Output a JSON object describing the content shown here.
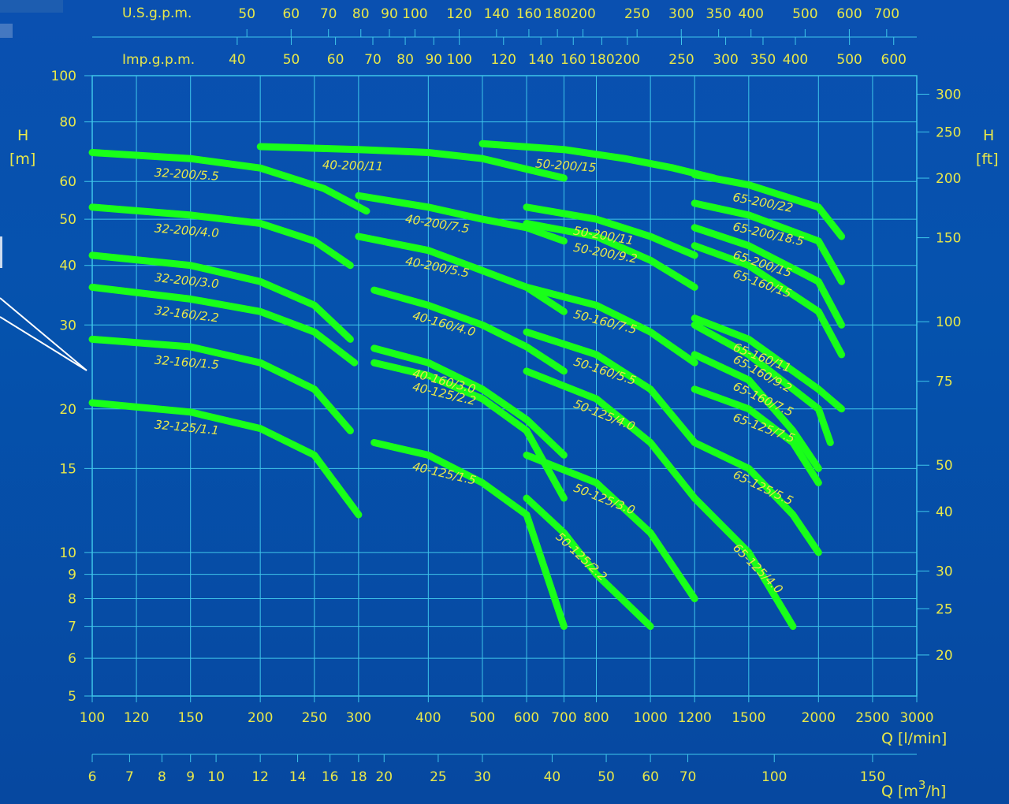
{
  "chart_data": {
    "type": "line",
    "xscale": "log",
    "yscale": "log",
    "x_ticks_lmin": [
      100,
      120,
      150,
      200,
      250,
      300,
      400,
      500,
      600,
      700,
      800,
      1000,
      1200,
      1500,
      2000,
      2500,
      3000
    ],
    "x_ticks_m3h": [
      6,
      7,
      8,
      9,
      10,
      12,
      14,
      16,
      18,
      20,
      25,
      30,
      40,
      50,
      60,
      70,
      100,
      150
    ],
    "x_ticks_usgpm": [
      50,
      60,
      70,
      80,
      90,
      100,
      120,
      140,
      160,
      180,
      200,
      250,
      300,
      350,
      400,
      500,
      600,
      700
    ],
    "x_ticks_impgpm": [
      40,
      50,
      60,
      70,
      80,
      90,
      100,
      120,
      140,
      160,
      180,
      200,
      250,
      300,
      350,
      400,
      500,
      600
    ],
    "y_ticks_m": [
      100,
      80,
      60,
      50,
      40,
      30,
      20,
      15,
      10,
      9,
      8,
      7,
      6,
      5
    ],
    "y_ticks_ft": [
      300,
      250,
      200,
      150,
      100,
      75,
      50,
      40,
      30,
      25,
      20
    ],
    "labels": {
      "usgpm": "U.S.g.p.m.",
      "impgpm": "Imp.g.p.m.",
      "h_left": "H",
      "h_left_unit": "[m]",
      "h_right": "H",
      "h_right_unit": "[ft]",
      "q_lmin": "Q [l/min]",
      "q_m3h_prefix": "Q [m",
      "q_m3h_sup": "3",
      "q_m3h_suffix": "/h]"
    },
    "series": [
      {
        "name": "32-200/5.5",
        "x": [
          100,
          150,
          200,
          260,
          310
        ],
        "y": [
          69,
          67,
          64,
          58,
          52
        ]
      },
      {
        "name": "32-200/4.0",
        "x": [
          100,
          150,
          200,
          250,
          290
        ],
        "y": [
          53,
          51,
          49,
          45,
          40
        ]
      },
      {
        "name": "32-200/3.0",
        "x": [
          100,
          150,
          200,
          250,
          290
        ],
        "y": [
          42,
          40,
          37,
          33,
          28
        ]
      },
      {
        "name": "32-160/2.2",
        "x": [
          100,
          150,
          200,
          250,
          295
        ],
        "y": [
          36,
          34,
          32,
          29,
          25
        ]
      },
      {
        "name": "32-160/1.5",
        "x": [
          100,
          150,
          200,
          250,
          290
        ],
        "y": [
          28,
          27,
          25,
          22,
          18
        ]
      },
      {
        "name": "32-125/1.1",
        "x": [
          100,
          150,
          200,
          250,
          300
        ],
        "y": [
          20.6,
          19.7,
          18.2,
          16,
          12
        ]
      },
      {
        "name": "40-200/11",
        "x": [
          200,
          300,
          400,
          500,
          700
        ],
        "y": [
          71,
          70,
          69,
          67,
          61
        ]
      },
      {
        "name": "40-200/7.5",
        "x": [
          300,
          400,
          500,
          600,
          700
        ],
        "y": [
          56,
          53,
          50,
          48,
          45
        ]
      },
      {
        "name": "40-200/5.5",
        "x": [
          300,
          400,
          500,
          600,
          700
        ],
        "y": [
          46,
          43,
          39,
          36,
          32
        ]
      },
      {
        "name": "40-160/4.0",
        "x": [
          320,
          400,
          500,
          600,
          700
        ],
        "y": [
          35.5,
          33,
          30,
          27,
          24
        ]
      },
      {
        "name": "40-160/3.0",
        "x": [
          320,
          400,
          500,
          600,
          700
        ],
        "y": [
          26.8,
          25,
          22,
          19,
          16
        ]
      },
      {
        "name": "40-125/2.2",
        "x": [
          320,
          400,
          500,
          600,
          700
        ],
        "y": [
          25,
          23.5,
          21,
          18,
          13
        ]
      },
      {
        "name": "40-125/1.5",
        "x": [
          320,
          400,
          500,
          600,
          700
        ],
        "y": [
          17,
          16,
          14,
          12,
          7
        ]
      },
      {
        "name": "50-200/15",
        "x": [
          500,
          700,
          900,
          1100,
          1300
        ],
        "y": [
          72,
          70,
          67,
          64,
          61
        ]
      },
      {
        "name": "50-200/11",
        "x": [
          600,
          800,
          1000,
          1200
        ],
        "y": [
          53,
          50,
          46,
          42
        ]
      },
      {
        "name": "50-200/9.2",
        "x": [
          600,
          800,
          1000,
          1200
        ],
        "y": [
          49,
          46,
          41,
          36
        ]
      },
      {
        "name": "50-160/7.5",
        "x": [
          600,
          800,
          1000,
          1200
        ],
        "y": [
          36,
          33,
          29,
          25
        ]
      },
      {
        "name": "50-160/5.5",
        "x": [
          600,
          800,
          1000,
          1200
        ],
        "y": [
          29,
          26,
          22,
          17
        ]
      },
      {
        "name": "50-125/4.0",
        "x": [
          600,
          800,
          1000,
          1200
        ],
        "y": [
          24,
          21,
          17,
          13
        ]
      },
      {
        "name": "50-125/3.0",
        "x": [
          600,
          800,
          1000,
          1200
        ],
        "y": [
          16,
          14,
          11,
          8
        ]
      },
      {
        "name": "50-125/2.2",
        "x": [
          600,
          700,
          800,
          1000
        ],
        "y": [
          13,
          11,
          9,
          7
        ]
      },
      {
        "name": "65-200/22",
        "x": [
          1200,
          1500,
          2000,
          2200
        ],
        "y": [
          62,
          59,
          53,
          46
        ]
      },
      {
        "name": "65-200/18.5",
        "x": [
          1200,
          1500,
          2000,
          2200
        ],
        "y": [
          54,
          51,
          45,
          37
        ]
      },
      {
        "name": "65-200/15",
        "x": [
          1200,
          1500,
          2000,
          2200
        ],
        "y": [
          48,
          44,
          37,
          30
        ]
      },
      {
        "name": "65-160/15",
        "x": [
          1200,
          1500,
          2000,
          2200
        ],
        "y": [
          44,
          40,
          32,
          26
        ]
      },
      {
        "name": "65-160/11",
        "x": [
          1200,
          1500,
          2000,
          2200
        ],
        "y": [
          31,
          28,
          22,
          20
        ]
      },
      {
        "name": "65-160/9.2",
        "x": [
          1200,
          1500,
          2000,
          2100
        ],
        "y": [
          30,
          26,
          20,
          17
        ]
      },
      {
        "name": "65-160/7.5",
        "x": [
          1200,
          1500,
          1800,
          2000
        ],
        "y": [
          26,
          23,
          18,
          15
        ]
      },
      {
        "name": "65-125/7.5",
        "x": [
          1200,
          1500,
          1800,
          2000
        ],
        "y": [
          22,
          20,
          17,
          14
        ]
      },
      {
        "name": "65-125/5.5",
        "x": [
          1200,
          1500,
          1800,
          2000
        ],
        "y": [
          17,
          15,
          12,
          10
        ]
      },
      {
        "name": "65-125/4.0",
        "x": [
          1200,
          1500,
          1800
        ],
        "y": [
          13,
          10,
          7
        ]
      }
    ]
  }
}
